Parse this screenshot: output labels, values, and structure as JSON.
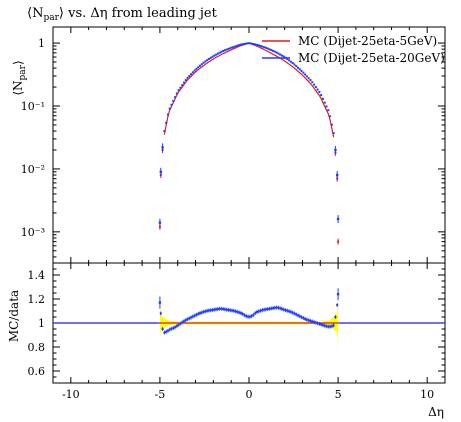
{
  "chart_data": [
    {
      "type": "scatter",
      "title_main": "⟨N",
      "title_sub": "par",
      "title_rest": "⟩ vs. Δη from leading jet",
      "ylabel_main": "⟨N",
      "ylabel_sub": "par",
      "ylabel_close": "⟩",
      "yscale": "log",
      "xlim": [
        -11,
        11
      ],
      "ylim": [
        0.00032,
        1.8
      ],
      "yticks": [
        {
          "value": 1,
          "label": "1"
        },
        {
          "value": 0.1,
          "label": "10⁻¹"
        },
        {
          "value": 0.01,
          "label": "10⁻²"
        },
        {
          "value": 0.001,
          "label": "10⁻³"
        }
      ],
      "legend_position": "top-right",
      "series": [
        {
          "name": "MC (Dijet-25eta-5GeV)",
          "color": "#e31a1c",
          "style": "line",
          "x": [
            -5.0,
            -4.95,
            -4.85,
            -4.75,
            -4.5,
            -4.0,
            -3.5,
            -3.0,
            -2.5,
            -2.0,
            -1.5,
            -1.0,
            -0.5,
            0.0,
            0.5,
            1.0,
            1.5,
            2.0,
            2.5,
            3.0,
            3.5,
            4.0,
            4.5,
            4.75,
            4.85,
            4.95,
            5.0
          ],
          "y": [
            0.0012,
            0.008,
            0.02,
            0.035,
            0.08,
            0.16,
            0.25,
            0.35,
            0.45,
            0.56,
            0.67,
            0.78,
            0.9,
            1.0,
            0.88,
            0.75,
            0.63,
            0.52,
            0.41,
            0.31,
            0.22,
            0.14,
            0.07,
            0.032,
            0.018,
            0.007,
            0.0007
          ]
        },
        {
          "name": "MC (Dijet-25eta-20GeV)",
          "color": "#1f3fff",
          "style": "points",
          "x": [
            -5.0,
            -4.95,
            -4.85,
            -4.75,
            -4.5,
            -4.0,
            -3.5,
            -3.0,
            -2.5,
            -2.0,
            -1.5,
            -1.0,
            -0.5,
            0.0,
            0.5,
            1.0,
            1.5,
            2.0,
            2.5,
            3.0,
            3.5,
            4.0,
            4.5,
            4.75,
            4.85,
            4.95,
            5.0
          ],
          "y": [
            0.0014,
            0.009,
            0.022,
            0.04,
            0.085,
            0.17,
            0.27,
            0.38,
            0.5,
            0.62,
            0.74,
            0.84,
            0.94,
            1.0,
            0.93,
            0.83,
            0.72,
            0.6,
            0.47,
            0.35,
            0.25,
            0.16,
            0.08,
            0.037,
            0.02,
            0.008,
            0.0016
          ]
        }
      ]
    },
    {
      "type": "scatter",
      "ylabel": "MC/data",
      "xlabel": "Δη",
      "xlim": [
        -11,
        11
      ],
      "ylim": [
        0.5,
        1.5
      ],
      "xticks": [
        -10,
        -5,
        0,
        5,
        10
      ],
      "yticks": [
        "0.6",
        "0.8",
        "1",
        "1.2",
        "1.4"
      ],
      "band": {
        "color": "#ffff00",
        "x": [
          -5.0,
          -4.95,
          -4.5,
          -4.0,
          0.0,
          4.0,
          4.5,
          4.95,
          5.0
        ],
        "upper": [
          1.15,
          1.06,
          1.02,
          1.01,
          1.01,
          1.01,
          1.02,
          1.08,
          1.18
        ],
        "lower": [
          0.85,
          0.94,
          0.98,
          0.99,
          0.99,
          0.99,
          0.98,
          0.92,
          0.82
        ]
      },
      "series": [
        {
          "name": "MC (Dijet-25eta-5GeV)",
          "color": "#e31a1c",
          "x": [
            -11,
            -5.05,
            -5.0,
            5.0,
            5.05,
            11
          ],
          "y": [
            1.0,
            1.0,
            1.0,
            1.0,
            1.0,
            1.0
          ]
        },
        {
          "name": "MC (Dijet-25eta-20GeV)",
          "color": "#1f3fff",
          "x": [
            -11,
            -5.2,
            -5.0,
            -4.95,
            -4.85,
            -4.75,
            -4.6,
            -4.4,
            -4.2,
            -4.0,
            -3.6,
            -3.2,
            -2.8,
            -2.4,
            -2.0,
            -1.6,
            -1.2,
            -0.8,
            -0.4,
            -0.2,
            0.0,
            0.2,
            0.4,
            0.8,
            1.2,
            1.6,
            2.0,
            2.4,
            2.8,
            3.2,
            3.6,
            4.0,
            4.2,
            4.4,
            4.6,
            4.75,
            4.85,
            4.95,
            5.0,
            5.2,
            11
          ],
          "y": [
            1.0,
            1.0,
            1.17,
            1.08,
            0.95,
            0.92,
            0.93,
            0.95,
            0.96,
            0.98,
            1.02,
            1.05,
            1.08,
            1.1,
            1.11,
            1.12,
            1.11,
            1.1,
            1.08,
            1.06,
            1.05,
            1.06,
            1.09,
            1.11,
            1.12,
            1.13,
            1.11,
            1.09,
            1.06,
            1.03,
            1.01,
            0.99,
            0.98,
            0.97,
            0.97,
            0.98,
            1.05,
            1.15,
            1.24,
            1.0,
            1.0
          ]
        }
      ]
    }
  ]
}
